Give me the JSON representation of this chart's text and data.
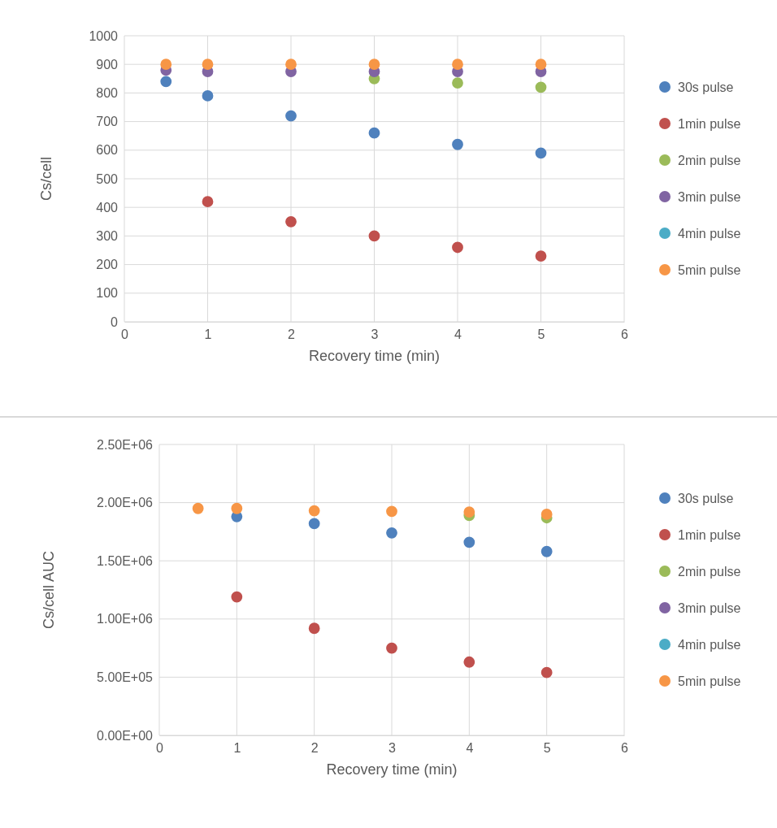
{
  "chart_data": [
    {
      "type": "scatter",
      "xlabel": "Recovery time (min)",
      "ylabel": "Cs/cell",
      "x": [
        0.5,
        1,
        2,
        3,
        4,
        5
      ],
      "xlim": [
        0,
        6
      ],
      "xticks": [
        0,
        1,
        2,
        3,
        4,
        5,
        6
      ],
      "ylim": [
        0,
        1000
      ],
      "yticks": [
        0,
        100,
        200,
        300,
        400,
        500,
        600,
        700,
        800,
        900,
        1000
      ],
      "grid": true,
      "legend": "right",
      "marker": "circle",
      "series": [
        {
          "name": "30s pulse",
          "color": "#4f81bd",
          "values": [
            840,
            790,
            720,
            660,
            620,
            590
          ]
        },
        {
          "name": "1min pulse",
          "color": "#c0504d",
          "values": [
            null,
            420,
            350,
            300,
            260,
            230
          ]
        },
        {
          "name": "2min pulse",
          "color": "#9bbb59",
          "values": [
            null,
            null,
            null,
            850,
            835,
            820
          ]
        },
        {
          "name": "3min pulse",
          "color": "#8064a2",
          "values": [
            880,
            875,
            875,
            875,
            875,
            875
          ]
        },
        {
          "name": "4min pulse",
          "color": "#4bacc6",
          "values": [
            null,
            null,
            null,
            null,
            null,
            null
          ]
        },
        {
          "name": "5min pulse",
          "color": "#f79646",
          "values": [
            900,
            900,
            900,
            900,
            900,
            900
          ]
        }
      ]
    },
    {
      "type": "scatter",
      "xlabel": "Recovery time (min)",
      "ylabel": "Cs/cell AUC",
      "x": [
        0.5,
        1,
        2,
        3,
        4,
        5
      ],
      "xlim": [
        0,
        6
      ],
      "xticks": [
        0,
        1,
        2,
        3,
        4,
        5,
        6
      ],
      "ylim": [
        0,
        2500000
      ],
      "yticks": [
        {
          "value": 0,
          "label": "0.00E+00"
        },
        {
          "value": 500000,
          "label": "5.00E+05"
        },
        {
          "value": 1000000,
          "label": "1.00E+06"
        },
        {
          "value": 1500000,
          "label": "1.50E+06"
        },
        {
          "value": 2000000,
          "label": "2.00E+06"
        },
        {
          "value": 2500000,
          "label": "2.50E+06"
        }
      ],
      "grid": true,
      "legend": "right",
      "marker": "circle",
      "series": [
        {
          "name": "30s pulse",
          "color": "#4f81bd",
          "values": [
            null,
            1880000,
            1820000,
            1740000,
            1660000,
            1580000
          ]
        },
        {
          "name": "1min pulse",
          "color": "#c0504d",
          "values": [
            null,
            1190000,
            920000,
            750000,
            630000,
            540000
          ]
        },
        {
          "name": "2min pulse",
          "color": "#9bbb59",
          "values": [
            null,
            null,
            null,
            null,
            1890000,
            1870000
          ]
        },
        {
          "name": "3min pulse",
          "color": "#8064a2",
          "values": [
            null,
            null,
            null,
            null,
            null,
            null
          ]
        },
        {
          "name": "4min pulse",
          "color": "#4bacc6",
          "values": [
            null,
            null,
            null,
            null,
            null,
            null
          ]
        },
        {
          "name": "5min pulse",
          "color": "#f79646",
          "values": [
            1950000,
            1950000,
            1930000,
            1925000,
            1920000,
            1900000
          ]
        }
      ]
    }
  ]
}
